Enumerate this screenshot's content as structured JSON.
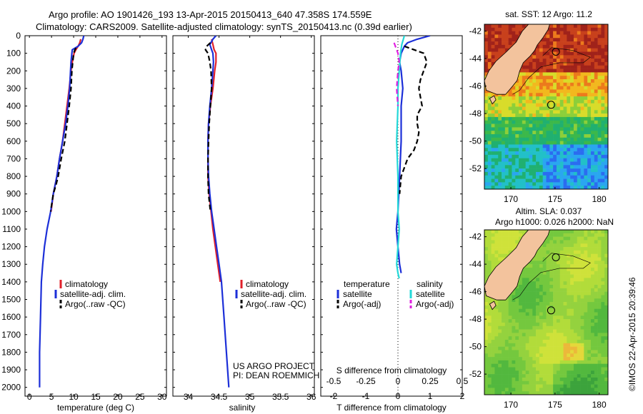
{
  "header": {
    "line1": "Argo profile: AO 1901426_193 13-Apr-2015 20150413_640 47.358S 174.559E",
    "line2": "Climatology: CARS2009. Satellite-adjusted climatology: synTS_20150413.nc (0.39d earlier)"
  },
  "colors": {
    "climatology": "#e0202a",
    "satellite": "#1c2fd8",
    "argo": "#000000",
    "salinity_sat": "#23d8d8",
    "salinity_argo": "#e020e0",
    "land": "#f3c39d"
  },
  "depth_axis": {
    "min": 0,
    "max": 2050,
    "ticks": [
      "0",
      "100",
      "200",
      "300",
      "400",
      "500",
      "600",
      "700",
      "800",
      "900",
      "1000",
      "1100",
      "1200",
      "1300",
      "1400",
      "1500",
      "1600",
      "1700",
      "1800",
      "1900",
      "2000"
    ]
  },
  "chart_data": [
    {
      "type": "line",
      "panel": "temperature",
      "xlabel": "temperature (deg C)",
      "xlim": [
        -1,
        31
      ],
      "xticks": [
        "0",
        "5",
        "10",
        "15",
        "20",
        "25",
        "30"
      ],
      "ylim": [
        2050,
        0
      ],
      "y_reversed": true,
      "legend": [
        "climatology",
        "satellite-adj. clim.",
        "Argo(..raw -QC)"
      ],
      "series": [
        {
          "name": "climatology",
          "color_key": "climatology",
          "style": "solid",
          "x": [
            11.6,
            11.4,
            11.0,
            10.5,
            10.1,
            9.7,
            9.4,
            9.0,
            8.5,
            8.0,
            7.5,
            6.8,
            6.2,
            5.4,
            4.9
          ],
          "y": [
            20,
            40,
            60,
            80,
            100,
            150,
            200,
            300,
            400,
            500,
            600,
            700,
            800,
            900,
            1000
          ]
        },
        {
          "name": "satellite-adj. clim.",
          "color_key": "satellite",
          "style": "solid",
          "x": [
            12.3,
            12.1,
            11.8,
            11.0,
            9.7,
            9.6,
            9.4,
            9.3,
            9.1,
            8.7,
            8.2,
            7.5,
            6.8,
            6.2,
            5.4,
            4.8,
            4.0,
            3.4,
            3.0,
            2.7,
            2.5,
            2.3,
            2.3
          ],
          "y": [
            0,
            20,
            40,
            60,
            80,
            100,
            150,
            200,
            300,
            400,
            500,
            600,
            700,
            800,
            900,
            1000,
            1100,
            1200,
            1300,
            1400,
            1600,
            1800,
            2000
          ]
        },
        {
          "name": "Argo(..raw -QC)",
          "color_key": "argo",
          "style": "dashed",
          "x": [
            10.5,
            10.3,
            10.0,
            9.8,
            9.6,
            9.4,
            9.0,
            8.5,
            8.0,
            7.2,
            6.5,
            6.0,
            5.4,
            4.8
          ],
          "y": [
            70,
            80,
            100,
            150,
            200,
            300,
            400,
            500,
            600,
            700,
            800,
            850,
            900,
            1000
          ]
        }
      ]
    },
    {
      "type": "line",
      "panel": "salinity",
      "xlabel": "salinity",
      "xlim": [
        33.75,
        36.05
      ],
      "xticks": [
        "34",
        "34.5",
        "35",
        "35.5",
        "36"
      ],
      "ylim": [
        2050,
        0
      ],
      "y_reversed": true,
      "legend": [
        "climatology",
        "satellite-adj. clim.",
        "Argo(..raw -QC)"
      ],
      "annotation": [
        "US ARGO PROJECT",
        "PI: DEAN ROEMMICH"
      ],
      "series": [
        {
          "name": "climatology",
          "color_key": "climatology",
          "style": "solid",
          "x": [
            34.38,
            34.4,
            34.42,
            34.45,
            34.45,
            34.43,
            34.4,
            34.36,
            34.33,
            34.32,
            34.32,
            34.32,
            34.34,
            34.37,
            34.4,
            34.44,
            34.48,
            34.52
          ],
          "y": [
            20,
            50,
            80,
            100,
            150,
            200,
            300,
            400,
            500,
            600,
            700,
            800,
            900,
            1000,
            1100,
            1200,
            1300,
            1400
          ]
        },
        {
          "name": "satellite-adj. clim.",
          "color_key": "satellite",
          "style": "solid",
          "x": [
            34.45,
            34.4,
            34.35,
            34.38,
            34.4,
            34.41,
            34.4,
            34.38,
            34.35,
            34.33,
            34.32,
            34.32,
            34.33,
            34.35,
            34.38,
            34.42,
            34.46,
            34.5,
            34.54,
            34.58,
            34.62,
            34.66
          ],
          "y": [
            0,
            20,
            50,
            80,
            100,
            150,
            200,
            300,
            400,
            500,
            600,
            700,
            800,
            900,
            1000,
            1100,
            1200,
            1300,
            1400,
            1600,
            1800,
            2000
          ]
        },
        {
          "name": "Argo(..raw -QC)",
          "color_key": "argo",
          "style": "dashed",
          "x": [
            34.36,
            34.3,
            34.28,
            34.32,
            34.35,
            34.37,
            34.38,
            34.36,
            34.34,
            34.33,
            34.32,
            34.32,
            34.33,
            34.36
          ],
          "y": [
            40,
            60,
            80,
            100,
            150,
            200,
            300,
            400,
            500,
            600,
            700,
            800,
            900,
            1000
          ]
        }
      ]
    },
    {
      "type": "line",
      "panel": "difference",
      "xlabel_bottom": "T difference from climatology",
      "xlabel_top": "S difference from climatology",
      "xlim_T": [
        -2.4,
        2.0
      ],
      "xticks_T": [
        "-2",
        "-1",
        "0",
        "1",
        "2"
      ],
      "xlim_S": [
        -0.6,
        0.5
      ],
      "xticks_S": [
        "-0.5",
        "-0.25",
        "0",
        "0.25",
        "0.5"
      ],
      "ylim": [
        2050,
        0
      ],
      "y_reversed": true,
      "legend_headers": [
        "temperature",
        "salinity"
      ],
      "legend": [
        "satellite",
        "Argo(-adj)",
        "satellite",
        "Argo(-adj)"
      ],
      "series": [
        {
          "name": "satellite",
          "group": "temperature",
          "color_key": "satellite",
          "style": "solid",
          "axis": "T",
          "x": [
            1.0,
            0.6,
            0.3,
            0.2,
            0.15,
            0.1,
            0.05,
            0.1,
            0.15,
            0.1,
            0.1,
            0.05,
            0.0,
            -0.05,
            0.0,
            0.05,
            0.1
          ],
          "y": [
            0,
            20,
            40,
            60,
            80,
            100,
            150,
            200,
            300,
            400,
            600,
            800,
            1000,
            1100,
            1200,
            1300,
            1350
          ]
        },
        {
          "name": "Argo(-adj)",
          "group": "temperature",
          "color_key": "argo",
          "style": "dashed",
          "axis": "T",
          "x": [
            0.2,
            0.5,
            0.8,
            0.9,
            0.8,
            0.7,
            0.65,
            0.7,
            0.75,
            0.6,
            0.6,
            0.65,
            0.6,
            0.5,
            0.3,
            0.2,
            0.1,
            0.05
          ],
          "y": [
            60,
            80,
            100,
            150,
            200,
            250,
            300,
            350,
            400,
            450,
            500,
            550,
            600,
            650,
            700,
            750,
            800,
            900
          ]
        },
        {
          "name": "satellite",
          "group": "salinity",
          "color_key": "salinity_sat",
          "style": "solid",
          "axis": "S",
          "x": [
            0.05,
            0.03,
            0.02,
            0.01,
            0.0,
            0.0,
            -0.01,
            0.0,
            0.0,
            0.01,
            0.0,
            -0.01,
            0.0,
            0.01
          ],
          "y": [
            0,
            50,
            100,
            200,
            300,
            400,
            600,
            800,
            1000,
            1100,
            1200,
            1300,
            1350,
            1380
          ]
        },
        {
          "name": "Argo(-adj)",
          "group": "salinity",
          "color_key": "salinity_argo",
          "style": "dashed",
          "axis": "S",
          "x": [
            -0.03,
            -0.02,
            -0.01,
            0.0,
            0.01,
            0.0,
            -0.01,
            0.0
          ],
          "y": [
            40,
            60,
            80,
            100,
            150,
            200,
            300,
            400
          ]
        }
      ]
    }
  ],
  "maps": [
    {
      "id": "sst",
      "title": "sat. SST: 12 Argo: 11.2",
      "subtitle": "",
      "xlim": [
        167,
        181
      ],
      "ylim": [
        -53.5,
        -41.5
      ],
      "xticks": [
        "170",
        "175",
        "180"
      ],
      "yticks": [
        "-42",
        "-44",
        "-46",
        "-48",
        "-50",
        "-52"
      ],
      "argo_lon": 174.56,
      "argo_lat": -47.36
    },
    {
      "id": "sla",
      "title": "Altim. SLA: 0.037",
      "subtitle": "Argo h1000: 0.026 h2000: NaN",
      "xlim": [
        167,
        181
      ],
      "ylim": [
        -53.5,
        -41.5
      ],
      "xticks": [
        "170",
        "175",
        "180"
      ],
      "yticks": [
        "-42",
        "-44",
        "-46",
        "-48",
        "-50",
        "-52"
      ],
      "argo_lon": 174.56,
      "argo_lat": -47.36
    }
  ],
  "credit": "©IMOS 22-Apr-2015 20:39:46"
}
